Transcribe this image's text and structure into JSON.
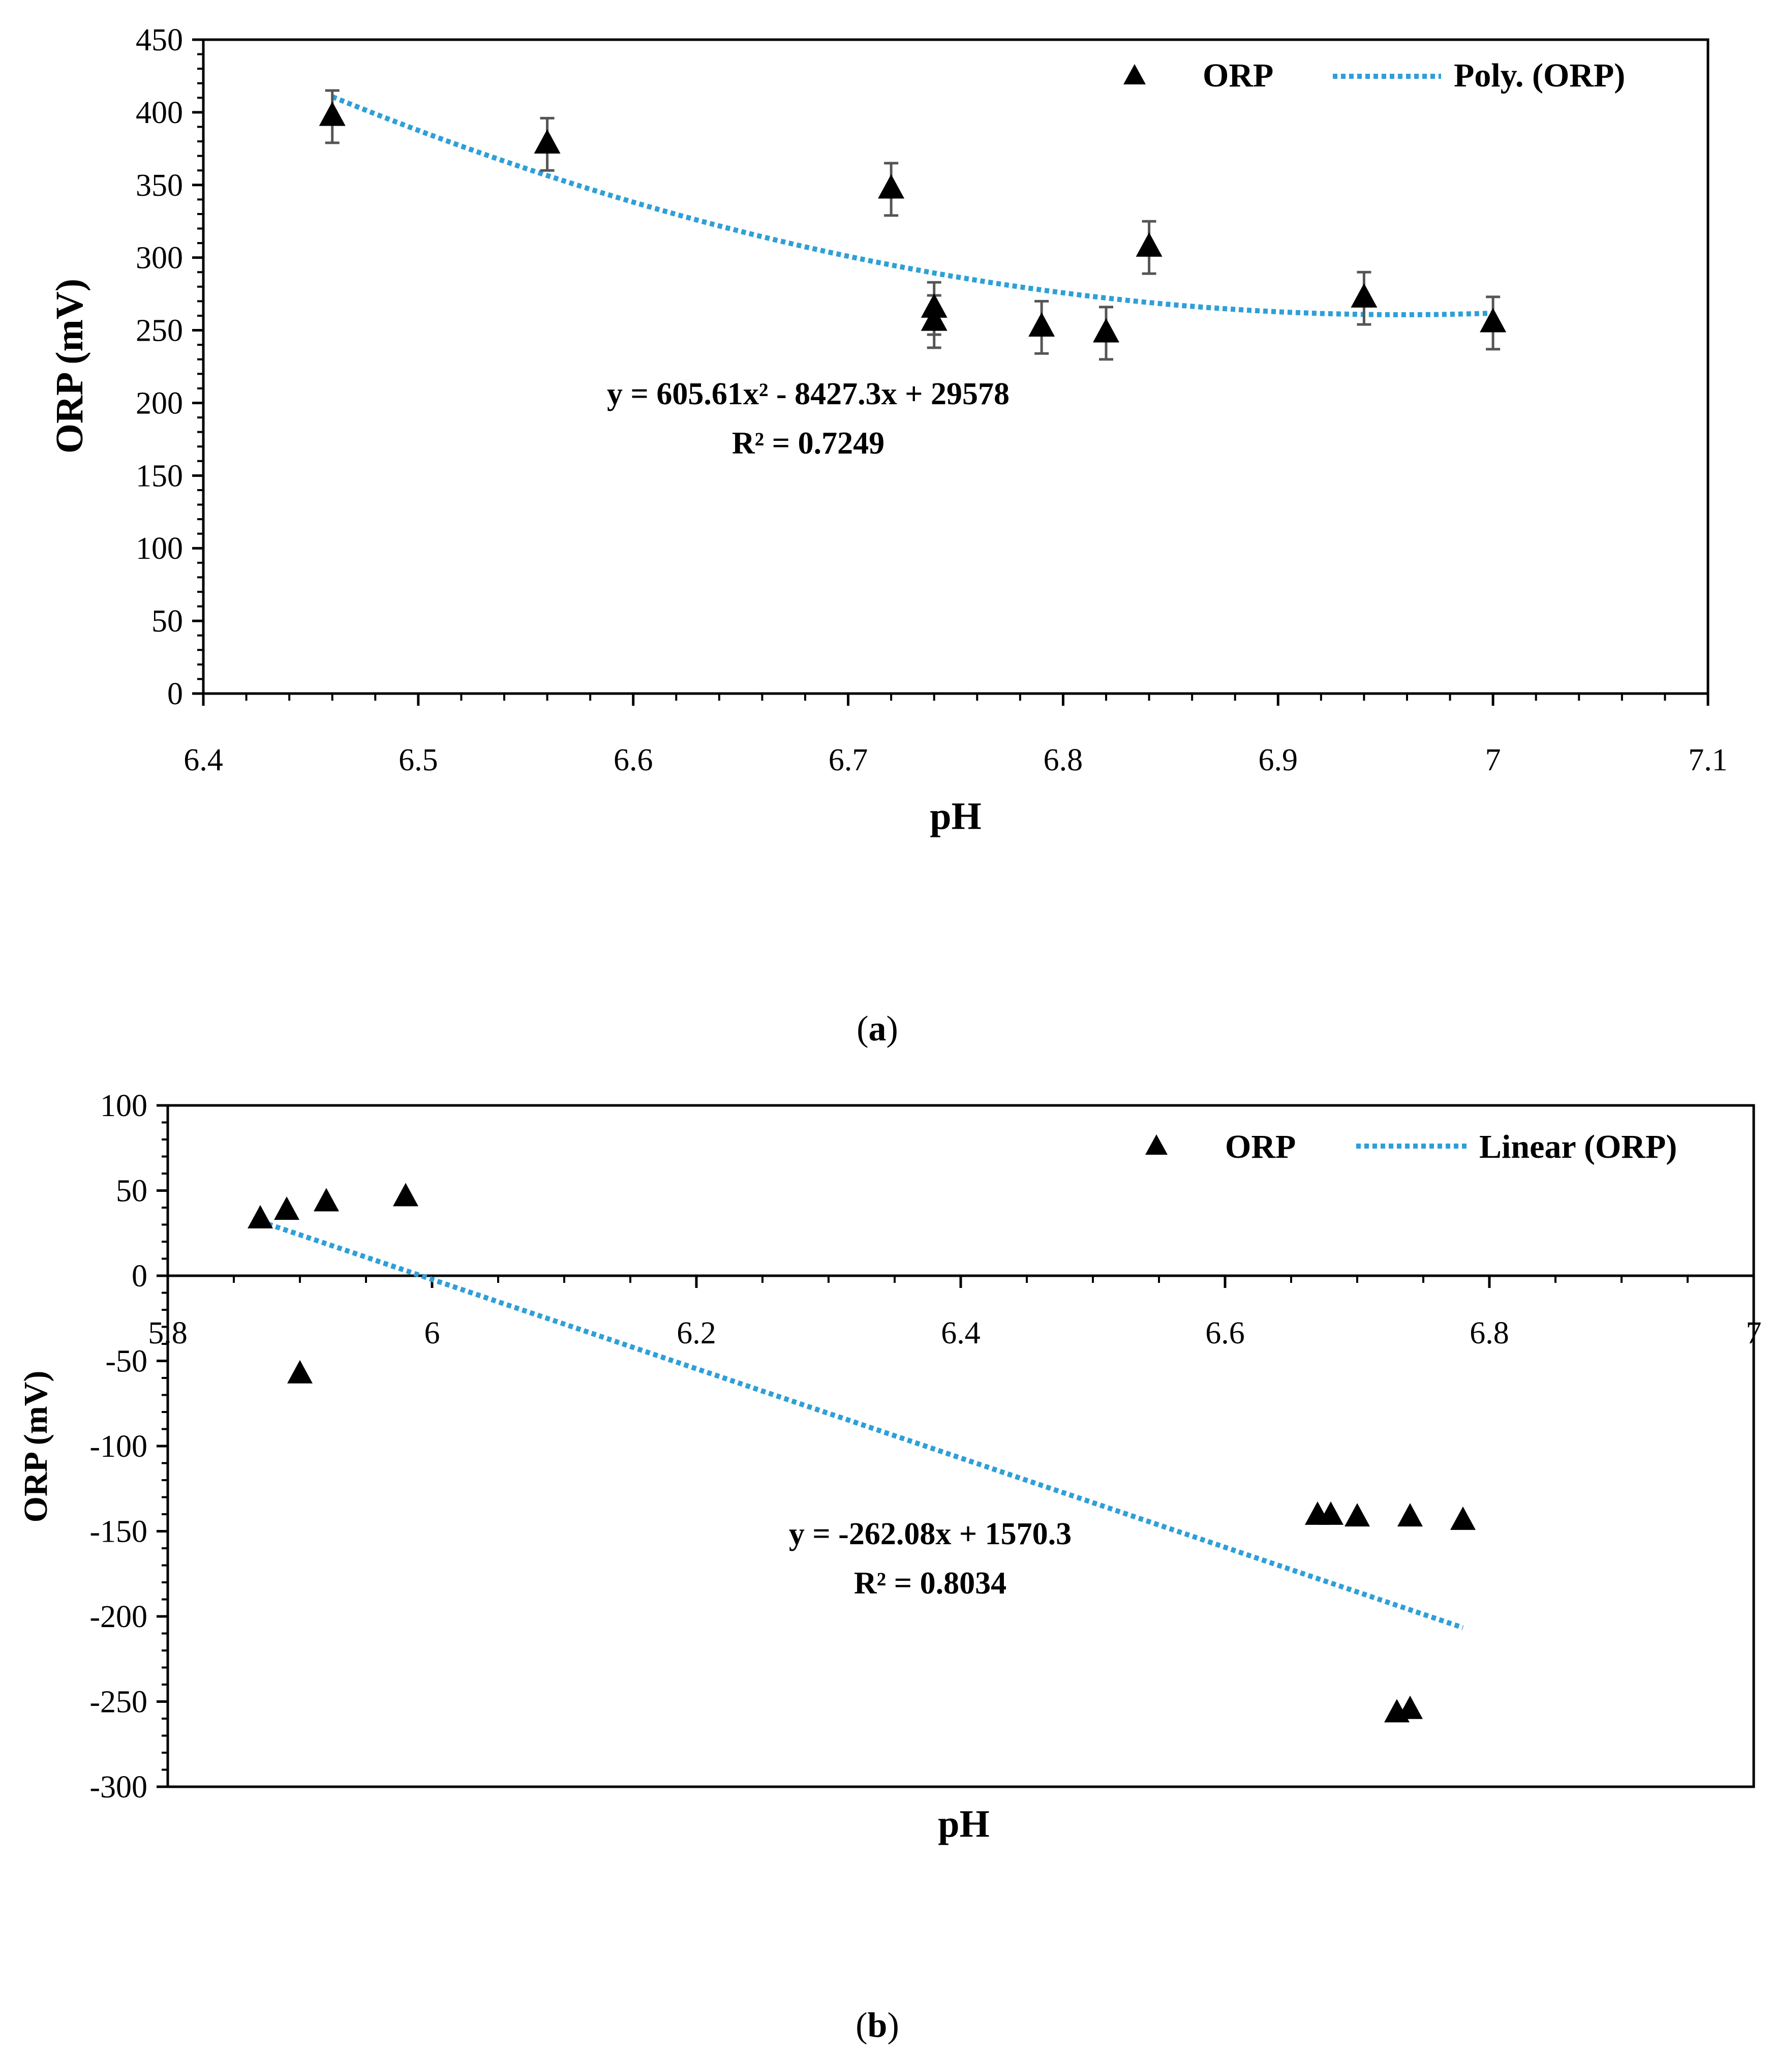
{
  "chart_data": [
    {
      "panel": "a",
      "type": "scatter",
      "caption_open": "(",
      "caption_letter": "a",
      "caption_close": ")",
      "xlabel": "pH",
      "ylabel": "ORP (mV)",
      "xlim": [
        6.4,
        7.1
      ],
      "ylim": [
        0,
        450
      ],
      "xticks": [
        6.4,
        6.5,
        6.6,
        6.7,
        6.8,
        6.9,
        7.0,
        7.1
      ],
      "xtick_labels": [
        "6.4",
        "6.5",
        "6.6",
        "6.7",
        "6.8",
        "6.9",
        "7",
        "7.1"
      ],
      "yticks": [
        0,
        50,
        100,
        150,
        200,
        250,
        300,
        350,
        400,
        450
      ],
      "ytick_labels": [
        "0",
        "50",
        "100",
        "150",
        "200",
        "250",
        "300",
        "350",
        "400",
        "450"
      ],
      "legend": {
        "placement": "top-right",
        "marker_label": "ORP",
        "line_label": "Poly. (ORP)"
      },
      "series": [
        {
          "name": "ORP",
          "color": "#000000",
          "x": [
            6.46,
            6.56,
            6.72,
            6.74,
            6.74,
            6.79,
            6.82,
            6.84,
            6.94,
            7.0
          ],
          "y": [
            397,
            378,
            347,
            265,
            256,
            252,
            248,
            307,
            272,
            255
          ],
          "error": [
            18,
            18,
            18,
            18,
            18,
            18,
            18,
            18,
            18,
            18
          ]
        }
      ],
      "trendline": {
        "name": "Poly. (ORP)",
        "type": "polynomial",
        "coefficients": [
          605.61,
          -8427.3,
          29578
        ],
        "x_range": [
          6.46,
          7.0
        ],
        "color": "#2f9fd8"
      },
      "equation": "y = 605.61x² - 8427.3x + 29578",
      "r_squared": "R² = 0.7249"
    },
    {
      "panel": "b",
      "type": "scatter",
      "caption_open": "(",
      "caption_letter": "b",
      "caption_close": ")",
      "xlabel": "pH",
      "ylabel": "ORP (mV)",
      "xlim": [
        5.8,
        7.0
      ],
      "ylim": [
        -300,
        100
      ],
      "xticks": [
        5.8,
        6.0,
        6.2,
        6.4,
        6.6,
        6.8,
        7.0
      ],
      "xtick_labels": [
        "5.8",
        "6",
        "6.2",
        "6.4",
        "6.6",
        "6.8",
        "7"
      ],
      "yticks": [
        -300,
        -250,
        -200,
        -150,
        -100,
        -50,
        0,
        50,
        100
      ],
      "ytick_labels": [
        "-300",
        "-250",
        "-200",
        "-150",
        "-100",
        "-50",
        "0",
        "50",
        "100"
      ],
      "legend": {
        "placement": "top-right",
        "marker_label": "ORP",
        "line_label": "Linear (ORP)"
      },
      "series": [
        {
          "name": "ORP",
          "color": "#000000",
          "x": [
            5.87,
            5.89,
            5.92,
            5.98,
            5.9,
            6.67,
            6.68,
            6.7,
            6.74,
            6.78,
            6.73,
            6.74
          ],
          "y": [
            33,
            38,
            43,
            46,
            -58,
            -141,
            -141,
            -142,
            -142,
            -144,
            -257,
            -255
          ]
        }
      ],
      "trendline": {
        "name": "Linear (ORP)",
        "type": "linear",
        "coefficients": [
          -262.08,
          1570.3
        ],
        "x_range": [
          5.87,
          6.78
        ],
        "color": "#2f9fd8"
      },
      "equation": "y = -262.08x + 1570.3",
      "r_squared": "R² = 0.8034"
    }
  ]
}
